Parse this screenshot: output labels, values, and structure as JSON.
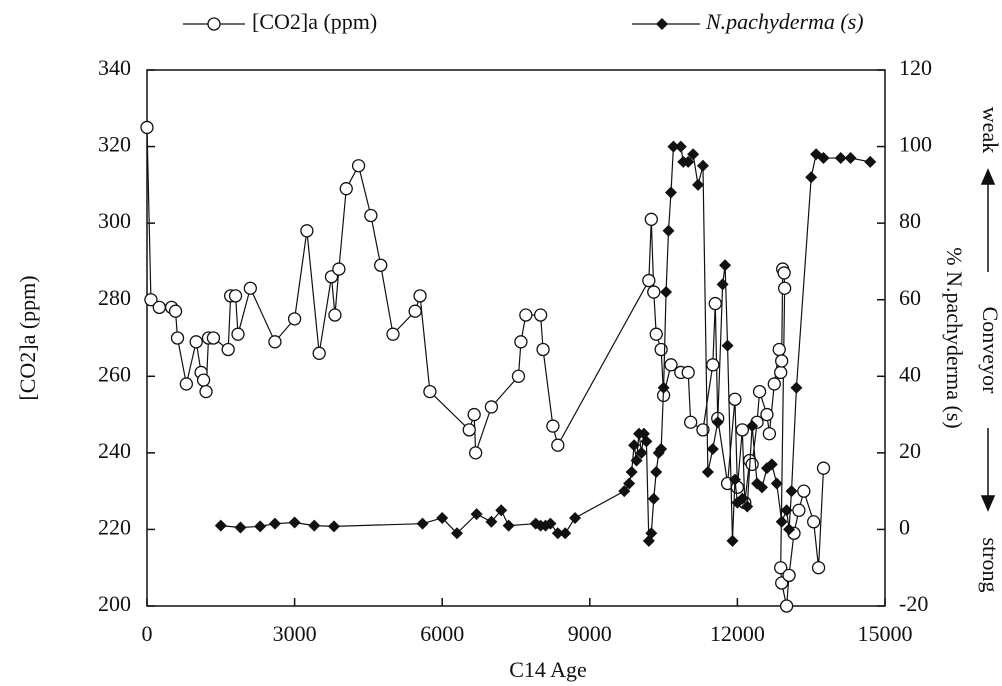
{
  "chart_data": {
    "type": "line",
    "xlabel": "C14 Age",
    "ylabel": "[CO2]a (ppm)",
    "y2label": "% N.pachyderma (s)",
    "annotations": [
      "weak",
      "Conveyor",
      "strong"
    ],
    "xlim": [
      0,
      15000
    ],
    "xticks": [
      0,
      3000,
      6000,
      9000,
      12000,
      15000
    ],
    "ylim": [
      200,
      340
    ],
    "yticks": [
      200,
      220,
      240,
      260,
      280,
      300,
      320,
      340
    ],
    "y2lim": [
      -20,
      120
    ],
    "y2ticks": [
      -20,
      0,
      20,
      40,
      60,
      80,
      100,
      120
    ],
    "grid": false,
    "series": [
      {
        "name": "[CO2]a (ppm)",
        "color": "#111111",
        "marker": "circle",
        "x": [
          0,
          80,
          250,
          500,
          580,
          620,
          800,
          1000,
          1100,
          1150,
          1200,
          1250,
          1350,
          1650,
          1700,
          1800,
          1850,
          2100,
          2600,
          3000,
          3250,
          3500,
          3750,
          3820,
          3900,
          4050,
          4300,
          4550,
          4750,
          5000,
          5450,
          5550,
          5750,
          6550,
          6650,
          6680,
          7000,
          7550,
          7600,
          7700,
          8000,
          8050,
          8250,
          8350,
          10200,
          10250,
          10300,
          10350,
          10450,
          10500,
          10650,
          10850,
          11000,
          11050,
          11300,
          11500,
          11550,
          11600,
          11800,
          11950,
          12000,
          12100,
          12150,
          12250,
          12300,
          12400,
          12450,
          12600,
          12650,
          12750,
          12850,
          12880,
          12900,
          12920,
          12950,
          12960,
          12880,
          12900,
          13000,
          13050,
          13150,
          13250,
          13350,
          13550,
          13650,
          13750
        ],
        "values": [
          325,
          280,
          278,
          278,
          277,
          270,
          258,
          269,
          261,
          259,
          256,
          270,
          270,
          267,
          281,
          281,
          271,
          283,
          269,
          275,
          298,
          266,
          286,
          276,
          288,
          309,
          315,
          302,
          289,
          271,
          277,
          281,
          256,
          246,
          250,
          240,
          252,
          260,
          269,
          276,
          276,
          267,
          247,
          242,
          285,
          301,
          282,
          271,
          267,
          255,
          263,
          261,
          261,
          248,
          246,
          263,
          279,
          249,
          232,
          254,
          231,
          246,
          227,
          238,
          237,
          248,
          256,
          250,
          245,
          258,
          267,
          261,
          264,
          288,
          287,
          283,
          210,
          206,
          200,
          208,
          219,
          225,
          230,
          222,
          210,
          236
        ]
      },
      {
        "name": "N.pachyderma (s)",
        "color": "#111111",
        "marker": "diamond",
        "axis": "y2",
        "x": [
          1500,
          1900,
          2300,
          2600,
          3000,
          3400,
          3800,
          5600,
          6000,
          6300,
          6700,
          7000,
          7200,
          7350,
          7900,
          8000,
          8100,
          8200,
          8350,
          8500,
          8700,
          9700,
          9800,
          9850,
          9900,
          9950,
          10000,
          10050,
          10100,
          10150,
          10200,
          10250,
          10300,
          10350,
          10400,
          10450,
          10500,
          10550,
          10600,
          10650,
          10700,
          10850,
          10900,
          11000,
          11100,
          11200,
          11300,
          11400,
          11500,
          11600,
          11700,
          11750,
          11800,
          11900,
          11950,
          12000,
          12100,
          12200,
          12300,
          12400,
          12500,
          12600,
          12700,
          12800,
          12900,
          13000,
          13050,
          13100,
          13200,
          13500,
          13600,
          13750,
          14100,
          14300,
          14700
        ],
        "values": [
          1,
          0.5,
          0.8,
          1.5,
          1.8,
          1,
          0.8,
          1.5,
          3,
          -1,
          4,
          2,
          5,
          1,
          1.5,
          1,
          1,
          1.5,
          -1,
          -1,
          3,
          10,
          12,
          15,
          22,
          18,
          25,
          20,
          25,
          23,
          -3,
          -1,
          8,
          15,
          20,
          21,
          37,
          62,
          78,
          88,
          100,
          100,
          96,
          96,
          98,
          90,
          95,
          15,
          21,
          28,
          64,
          69,
          48,
          -3,
          13,
          7,
          8,
          6,
          27,
          12,
          11,
          16,
          17,
          12,
          2,
          5,
          0,
          10,
          37,
          92,
          98,
          97,
          97,
          97,
          96
        ]
      }
    ]
  }
}
